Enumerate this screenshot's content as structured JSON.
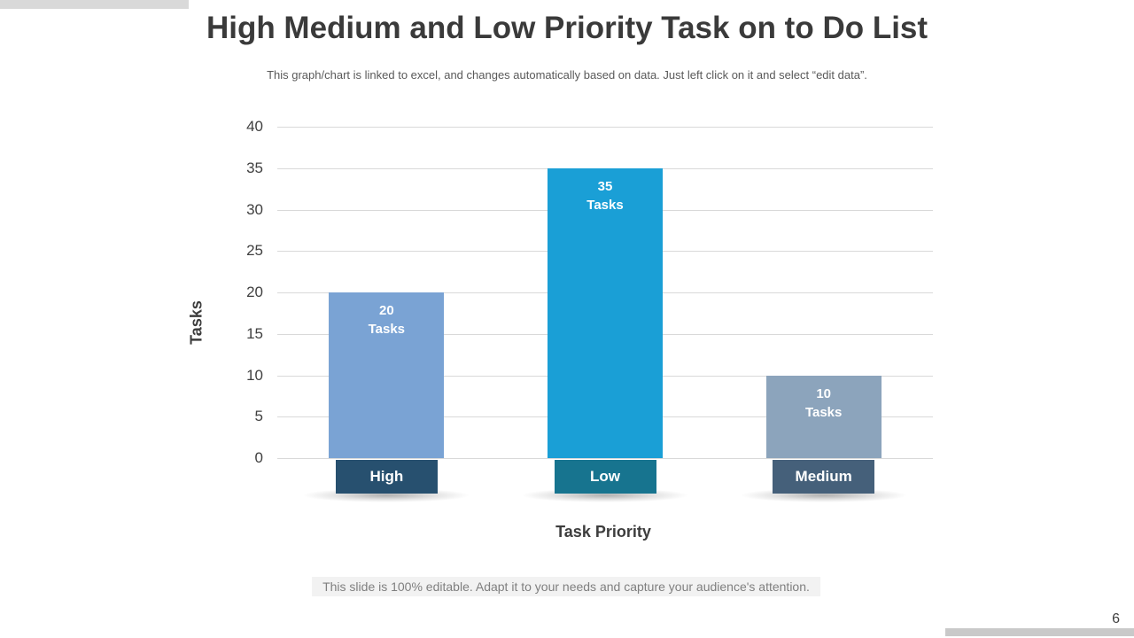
{
  "header": {
    "title": "High Medium and Low Priority Task on to Do List",
    "subtitle": "This graph/chart is linked to excel, and changes automatically based on data. Just left click on it and select “edit data”."
  },
  "chart_data": {
    "type": "bar",
    "title": "",
    "categories": [
      "High",
      "Low",
      "Medium"
    ],
    "values": [
      20,
      35,
      10
    ],
    "value_unit": "Tasks",
    "bar_labels": [
      "20 Tasks",
      "35 Tasks",
      "10 Tasks"
    ],
    "xlabel": "Task Priority",
    "ylabel": "Tasks",
    "ylim": [
      0,
      40
    ],
    "yticks": [
      0,
      5,
      10,
      15,
      20,
      25,
      30,
      35,
      40
    ],
    "grid": "horizontal",
    "legend": "none",
    "bar_colors": [
      "#7aa3d4",
      "#1a9fd6",
      "#8ca4bc"
    ],
    "category_label_colors": [
      "#27506f",
      "#17748f",
      "#45607a"
    ]
  },
  "footer": {
    "note": "This slide is 100% editable. Adapt it to your needs and capture your audience's attention.",
    "page_number": "6"
  }
}
